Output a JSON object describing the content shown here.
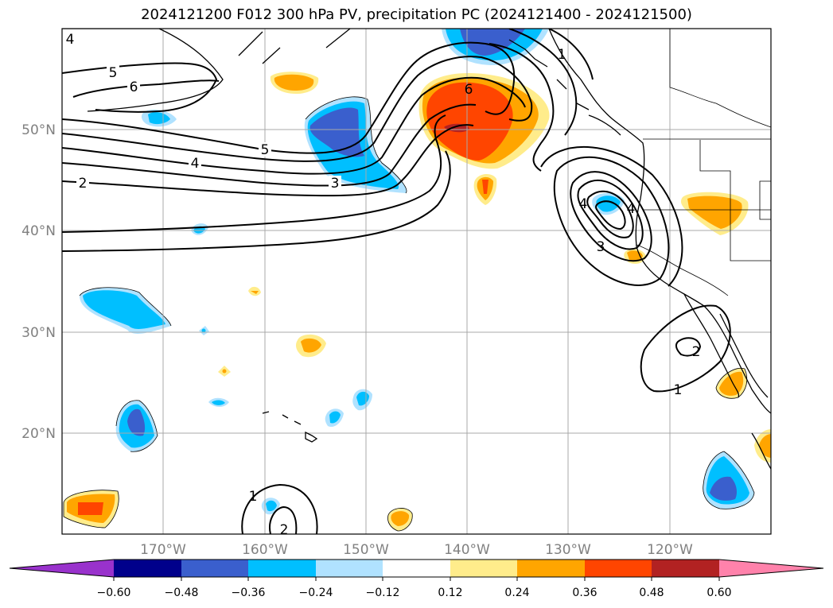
{
  "title": "2024121200 F012 300 hPa PV, precipitation PC (2024121400 - 2024121500)",
  "lat_labels": [
    "50°N",
    "40°N",
    "30°N",
    "20°N"
  ],
  "lon_labels": [
    "170°W",
    "160°W",
    "150°W",
    "140°W",
    "130°W",
    "120°W"
  ],
  "contour_labels": [
    "5",
    "6",
    "5",
    "4",
    "2",
    "3",
    "6",
    "4",
    "3",
    "4",
    "1",
    "2",
    "1",
    "1",
    "2",
    "4"
  ],
  "colorbar": {
    "ticks": [
      "−0.60",
      "−0.48",
      "−0.36",
      "−0.24",
      "−0.12",
      "0.12",
      "0.24",
      "0.36",
      "0.48",
      "0.60"
    ],
    "colors": [
      "#9932cc",
      "#00008b",
      "#3a5fcd",
      "#00bfff",
      "#b0e2ff",
      "#ffffff",
      "#ffec8b",
      "#ffa500",
      "#ff4500",
      "#b22222",
      "#ff82ab"
    ]
  }
}
